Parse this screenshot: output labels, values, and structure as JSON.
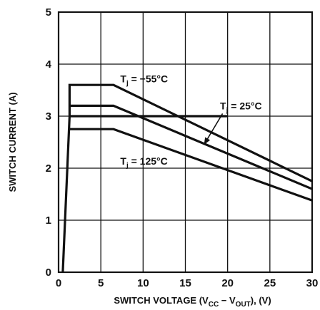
{
  "chart_data": {
    "type": "line",
    "title": "",
    "xlabel": "SWITCH VOLTAGE (V",
    "xlabel_sub1": "CC",
    "xlabel_mid": " − V",
    "xlabel_sub2": "OUT",
    "xlabel_end": "), (V)",
    "ylabel": "SWITCH CURRENT (A)",
    "xlim": [
      0,
      30
    ],
    "ylim": [
      0,
      5
    ],
    "xticks": [
      "0",
      "5",
      "10",
      "15",
      "20",
      "25",
      "30"
    ],
    "yticks": [
      "0",
      "1",
      "2",
      "3",
      "4",
      "5"
    ],
    "grid": true,
    "series": [
      {
        "name": "Tj = −55°C",
        "label_main": "T",
        "label_sub": "j",
        "label_rest": " = −55°C",
        "x": [
          0.5,
          1.3,
          1.3,
          6.5,
          30
        ],
        "y": [
          0,
          3.0,
          3.6,
          3.6,
          1.75
        ]
      },
      {
        "name": "Tj = 25°C",
        "label_main": "T",
        "label_sub": "j",
        "label_rest": " = 25°C",
        "x": [
          1.3,
          6.5,
          30
        ],
        "y": [
          3.2,
          3.2,
          1.6
        ]
      },
      {
        "name": "Tj = 125°C",
        "label_main": "T",
        "label_sub": "j",
        "label_rest": " = 125°C",
        "x": [
          1.3,
          6.5,
          30
        ],
        "y": [
          2.75,
          2.75,
          1.38
        ]
      }
    ],
    "extra_lines": [
      {
        "name": "current-level-3-0",
        "x": [
          1.3,
          20.0
        ],
        "y": [
          3.0,
          3.0
        ]
      }
    ]
  }
}
